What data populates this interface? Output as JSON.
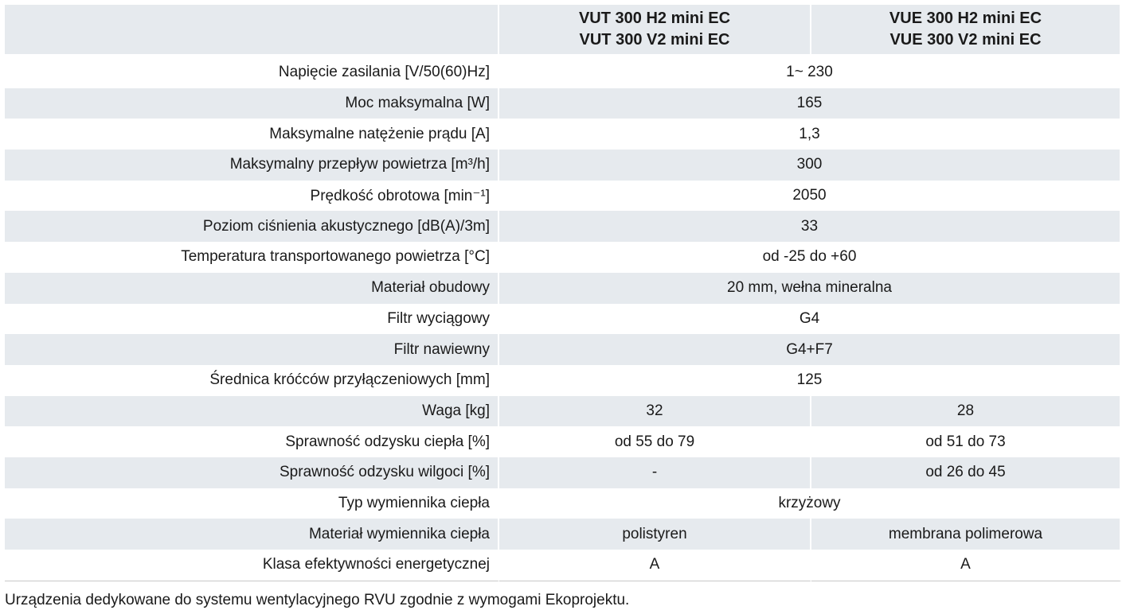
{
  "table": {
    "header": [
      "VUT 300 H2 mini EC\nVUT 300 V2 mini EC",
      "VUE 300 H2 mini EC\nVUE 300 V2 mini EC"
    ],
    "rows": [
      {
        "label": "Napięcie zasilania [V/50(60)Hz]",
        "values": [
          "1~ 230"
        ]
      },
      {
        "label": "Moc maksymalna [W]",
        "values": [
          "165"
        ]
      },
      {
        "label": "Maksymalne natężenie prądu [A]",
        "values": [
          "1,3"
        ]
      },
      {
        "label": "Maksymalny przepływ powietrza [m³/h]",
        "values": [
          "300"
        ]
      },
      {
        "label": "Prędkość obrotowa [min⁻¹]",
        "values": [
          "2050"
        ]
      },
      {
        "label": "Poziom ciśnienia akustycznego [dB(A)/3m]",
        "values": [
          "33"
        ]
      },
      {
        "label": "Temperatura transportowanego powietrza [°C]",
        "values": [
          "od -25 do +60"
        ]
      },
      {
        "label": "Materiał obudowy",
        "values": [
          "20 mm, wełna mineralna"
        ]
      },
      {
        "label": "Filtr wyciągowy",
        "values": [
          "G4"
        ]
      },
      {
        "label": "Filtr nawiewny",
        "values": [
          "G4+F7"
        ]
      },
      {
        "label": "Średnica króćców przyłączeniowych [mm]",
        "values": [
          "125"
        ]
      },
      {
        "label": "Waga [kg]",
        "values": [
          "32",
          "28"
        ]
      },
      {
        "label": "Sprawność odzysku ciepła [%]",
        "values": [
          "od 55 do 79",
          "od 51 do 73"
        ]
      },
      {
        "label": "Sprawność odzysku wilgoci [%]",
        "values": [
          "-",
          "od 26 do 45"
        ]
      },
      {
        "label": "Typ wymiennika ciepła",
        "values": [
          "krzyżowy"
        ]
      },
      {
        "label": "Materiał wymiennika ciepła",
        "values": [
          "polistyren",
          "membrana polimerowa"
        ]
      },
      {
        "label": "Klasa efektywności energetycznej",
        "values": [
          "A",
          "A"
        ]
      }
    ]
  },
  "footer": "Urządzenia dedykowane do systemu wentylacyjnego RVU zgodnie z wymogami Ekoprojektu."
}
